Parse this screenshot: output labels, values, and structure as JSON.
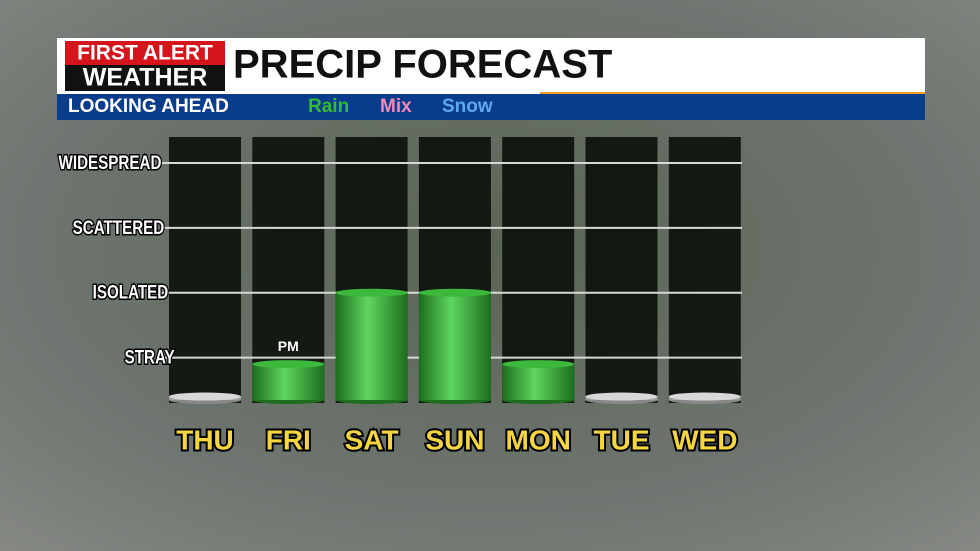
{
  "chart_data": {
    "type": "bar",
    "logo": {
      "line1": "FIRST ALERT",
      "line2": "WEATHER"
    },
    "title": "PRECIP FORECAST",
    "subtitle": "LOOKING AHEAD",
    "legend": [
      {
        "name": "Rain",
        "color": "#2fbf2f"
      },
      {
        "name": "Mix",
        "color": "#f08ab8"
      },
      {
        "name": "Snow",
        "color": "#5fa8f0"
      }
    ],
    "categories": [
      "THU",
      "FRI",
      "SAT",
      "SUN",
      "MON",
      "TUE",
      "WED"
    ],
    "values": [
      0.4,
      0.9,
      2,
      2,
      0.9,
      0.4,
      0.4
    ],
    "colors": [
      "#d8d8d8",
      "#3cb83c",
      "#3cb83c",
      "#3cb83c",
      "#3cb83c",
      "#d8d8d8",
      "#d8d8d8"
    ],
    "annotations": [
      {
        "text": "PM",
        "category": "FRI"
      }
    ],
    "ylim": [
      0.3,
      4.4
    ],
    "yticks": [
      {
        "value": 1,
        "label": "STRAY"
      },
      {
        "value": 2,
        "label": "ISOLATED"
      },
      {
        "value": 3,
        "label": "SCATTERED"
      },
      {
        "value": 4,
        "label": "WIDESPREAD"
      }
    ],
    "grid": true
  }
}
